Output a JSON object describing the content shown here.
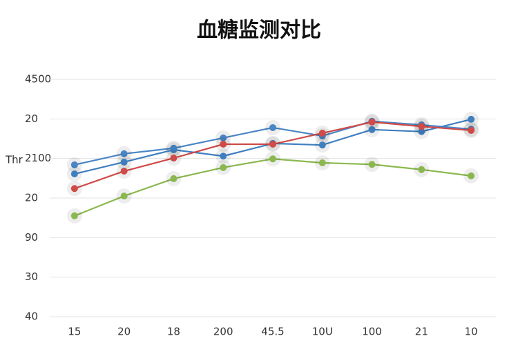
{
  "chart_data": {
    "type": "line",
    "title": "血糖监测对比",
    "ylabel": "Thr",
    "categories": [
      "15",
      "20",
      "18",
      "200",
      "45.5",
      "10U",
      "100",
      "21",
      "10"
    ],
    "ylim": [
      0,
      6
    ],
    "yticks": [
      {
        "value": 0,
        "label": "40"
      },
      {
        "value": 1,
        "label": "30"
      },
      {
        "value": 2,
        "label": "90"
      },
      {
        "value": 3,
        "label": "20"
      },
      {
        "value": 4,
        "label": "2100"
      },
      {
        "value": 5,
        "label": "20"
      },
      {
        "value": 6,
        "label": "4500"
      }
    ],
    "grid": true,
    "series": [
      {
        "color": "#4a86c5",
        "values": [
          3.84,
          4.12,
          4.26,
          4.52,
          4.78,
          4.57,
          4.94,
          4.85,
          4.74
        ]
      },
      {
        "color": "#3f7fc0",
        "values": [
          3.61,
          3.91,
          4.22,
          4.06,
          4.38,
          4.34,
          4.73,
          4.68,
          4.99
        ]
      },
      {
        "color": "#d04a47",
        "values": [
          3.24,
          3.68,
          4.01,
          4.36,
          4.36,
          4.64,
          4.92,
          4.81,
          4.71
        ]
      },
      {
        "color": "#8ab84e",
        "values": [
          2.55,
          3.05,
          3.49,
          3.77,
          3.99,
          3.89,
          3.85,
          3.72,
          3.56
        ]
      }
    ]
  }
}
